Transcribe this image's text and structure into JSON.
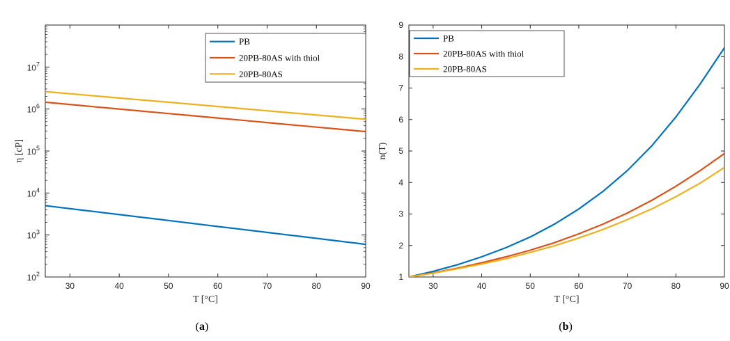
{
  "charts": [
    {
      "id": "a",
      "caption": "(a)",
      "chart_data": {
        "type": "line",
        "xlabel": "T [°C]",
        "ylabel": "η [cP]",
        "xlim": [
          25,
          90
        ],
        "ylim": [
          100,
          100000000
        ],
        "yscale": "log",
        "xticks": [
          30,
          40,
          50,
          60,
          70,
          80,
          90
        ],
        "yticks": [
          {
            "value": 100,
            "base": "10",
            "exp": "2"
          },
          {
            "value": 1000,
            "base": "10",
            "exp": "3"
          },
          {
            "value": 10000,
            "base": "10",
            "exp": "4"
          },
          {
            "value": 100000,
            "base": "10",
            "exp": "5"
          },
          {
            "value": 1000000,
            "base": "10",
            "exp": "6"
          },
          {
            "value": 10000000,
            "base": "10",
            "exp": "7"
          }
        ],
        "grid": false,
        "legend_position": "top-right",
        "series": [
          {
            "name": "PB",
            "color": "#0072BD",
            "x": [
              25,
              90
            ],
            "y": [
              5000,
              600
            ]
          },
          {
            "name": "20PB-80AS with thiol",
            "color": "#D95319",
            "x": [
              25,
              90
            ],
            "y": [
              1450000,
              290000
            ]
          },
          {
            "name": "20PB-80AS",
            "color": "#EDB120",
            "x": [
              25,
              90
            ],
            "y": [
              2600000,
              570000
            ]
          }
        ]
      }
    },
    {
      "id": "b",
      "caption": "(b)",
      "chart_data": {
        "type": "line",
        "xlabel": "T [°C]",
        "ylabel": "n(T)",
        "xlim": [
          25,
          90
        ],
        "ylim": [
          1,
          9
        ],
        "yscale": "linear",
        "xticks": [
          30,
          40,
          50,
          60,
          70,
          80,
          90
        ],
        "yticks": [
          1,
          2,
          3,
          4,
          5,
          6,
          7,
          8,
          9
        ],
        "grid": false,
        "legend_position": "top-left",
        "series": [
          {
            "name": "PB",
            "color": "#0072BD",
            "x": [
              25,
              30,
              35,
              40,
              45,
              50,
              55,
              60,
              65,
              70,
              75,
              80,
              85,
              90
            ],
            "y": [
              1.0,
              1.18,
              1.39,
              1.64,
              1.93,
              2.27,
              2.68,
              3.16,
              3.72,
              4.38,
              5.16,
              6.08,
              7.13,
              8.28
            ]
          },
          {
            "name": "20PB-80AS with thiol",
            "color": "#D95319",
            "x": [
              25,
              30,
              35,
              40,
              45,
              50,
              55,
              60,
              65,
              70,
              75,
              80,
              85,
              90
            ],
            "y": [
              1.0,
              1.13,
              1.28,
              1.45,
              1.64,
              1.85,
              2.09,
              2.37,
              2.68,
              3.03,
              3.43,
              3.88,
              4.38,
              4.92
            ]
          },
          {
            "name": "20PB-80AS",
            "color": "#EDB120",
            "x": [
              25,
              30,
              35,
              40,
              45,
              50,
              55,
              60,
              65,
              70,
              75,
              80,
              85,
              90
            ],
            "y": [
              1.0,
              1.12,
              1.26,
              1.41,
              1.58,
              1.78,
              1.99,
              2.24,
              2.51,
              2.82,
              3.16,
              3.55,
              3.98,
              4.48
            ]
          }
        ]
      }
    }
  ]
}
